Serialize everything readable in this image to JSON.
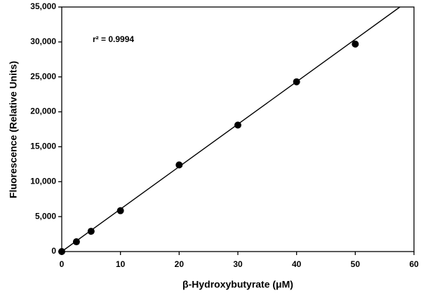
{
  "chart_data": {
    "type": "scatter",
    "x_label": "β-Hydroxybutyrate (μM)",
    "y_label": "Fluorescence (Relative Units)",
    "annotation": "r² = 0.9994",
    "x": [
      0,
      2.5,
      5,
      10,
      20,
      30,
      40,
      50
    ],
    "values": [
      0,
      1400,
      2900,
      5850,
      12400,
      18100,
      24300,
      29700
    ],
    "color": "#000000",
    "fit": {
      "x": [
        0,
        57.6
      ],
      "y": [
        0,
        35000
      ]
    },
    "xlim": [
      0,
      60
    ],
    "xticks": [
      0,
      10,
      20,
      30,
      40,
      50,
      60
    ],
    "ylim": [
      0,
      35000
    ],
    "yticks": [
      0,
      {
        "value": 5000,
        "label": "5,000"
      },
      {
        "value": 10000,
        "label": "10,000"
      },
      {
        "value": 15000,
        "label": "15,000"
      },
      {
        "value": 20000,
        "label": "20,000"
      },
      {
        "value": 25000,
        "label": "25,000"
      },
      {
        "value": 30000,
        "label": "30,000"
      },
      {
        "value": 35000,
        "label": "35,000"
      }
    ],
    "grid": false
  }
}
